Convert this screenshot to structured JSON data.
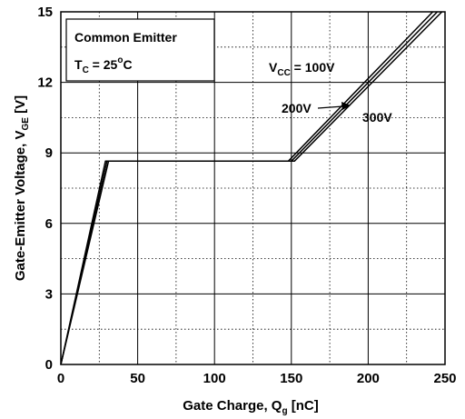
{
  "chart_data": {
    "type": "line",
    "xlabel": "Gate Charge, Q",
    "xlabel_sub": "g",
    "xlabel_unit": " [nC]",
    "ylabel": "Gate-Emitter Voltage, V",
    "ylabel_sub": "GE",
    "ylabel_unit": " [V]",
    "xlim": [
      0,
      250
    ],
    "ylim": [
      0,
      15
    ],
    "xticks": [
      "0",
      "50",
      "100",
      "150",
      "200",
      "250"
    ],
    "yticks": [
      "0",
      "3",
      "6",
      "9",
      "12",
      "15"
    ],
    "grid": true,
    "legend_box": {
      "line1": "Common Emitter",
      "line2_main": "T",
      "line2_sub": "C",
      "line2_rest": " = 25",
      "line2_sup": "o",
      "line2_end": "C"
    },
    "series": [
      {
        "name": "V_CC = 100V",
        "x": [
          0,
          29,
          148,
          242
        ],
        "y": [
          0,
          8.65,
          8.65,
          15
        ]
      },
      {
        "name": "200V",
        "x": [
          0,
          30,
          150,
          245
        ],
        "y": [
          0,
          8.65,
          8.65,
          15
        ]
      },
      {
        "name": "300V",
        "x": [
          0,
          31,
          152,
          248
        ],
        "y": [
          0,
          8.65,
          8.65,
          15
        ]
      }
    ],
    "annotations": {
      "vcc_main": "V",
      "vcc_sub": "CC",
      "vcc_rest": " = 100V",
      "v200": "200V",
      "v300": "300V"
    }
  }
}
